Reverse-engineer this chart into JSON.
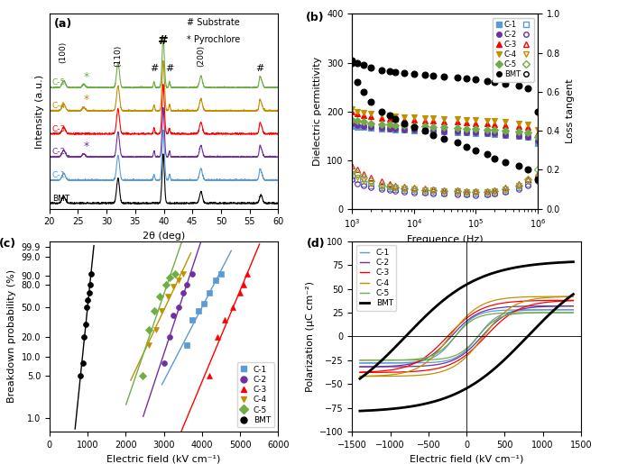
{
  "colors": {
    "C1": "#5b9bd5",
    "C2": "#7030a0",
    "C3": "#ff0000",
    "C4": "#c09000",
    "C5": "#70ad47",
    "BMT": "#000000"
  },
  "panel_b": {
    "freq": [
      1000,
      1200,
      1500,
      2000,
      3000,
      4000,
      5000,
      7000,
      10000,
      15000,
      20000,
      30000,
      50000,
      70000,
      100000,
      150000,
      200000,
      300000,
      500000,
      700000,
      1000000
    ],
    "BMT_perm": [
      305,
      300,
      295,
      290,
      285,
      283,
      281,
      279,
      277,
      275,
      273,
      271,
      269,
      267,
      265,
      263,
      261,
      257,
      253,
      248,
      200
    ],
    "C1_perm": [
      170,
      168,
      167,
      166,
      165,
      164,
      163,
      162,
      161,
      160,
      159,
      158,
      157,
      156,
      155,
      154,
      153,
      151,
      149,
      147,
      135
    ],
    "C2_perm": [
      175,
      172,
      170,
      168,
      166,
      165,
      164,
      163,
      162,
      161,
      160,
      159,
      158,
      157,
      156,
      155,
      154,
      152,
      150,
      148,
      140
    ],
    "C3_perm": [
      200,
      195,
      192,
      190,
      187,
      185,
      184,
      183,
      182,
      181,
      180,
      179,
      178,
      177,
      176,
      175,
      174,
      172,
      170,
      167,
      155
    ],
    "C4_perm": [
      205,
      200,
      198,
      196,
      193,
      191,
      190,
      189,
      188,
      187,
      186,
      185,
      184,
      183,
      182,
      181,
      180,
      178,
      176,
      174,
      162
    ],
    "C5_perm": [
      183,
      180,
      178,
      176,
      174,
      173,
      172,
      171,
      170,
      169,
      168,
      167,
      166,
      165,
      164,
      163,
      162,
      160,
      158,
      156,
      148
    ],
    "BMT_loss": [
      0.75,
      0.65,
      0.6,
      0.55,
      0.5,
      0.48,
      0.46,
      0.44,
      0.42,
      0.4,
      0.38,
      0.36,
      0.34,
      0.32,
      0.3,
      0.28,
      0.26,
      0.24,
      0.22,
      0.2,
      0.15
    ],
    "C1_loss": [
      0.17,
      0.15,
      0.13,
      0.12,
      0.11,
      0.105,
      0.1,
      0.095,
      0.09,
      0.088,
      0.085,
      0.082,
      0.08,
      0.078,
      0.076,
      0.078,
      0.082,
      0.09,
      0.11,
      0.13,
      0.15
    ],
    "C2_loss": [
      0.15,
      0.13,
      0.12,
      0.11,
      0.1,
      0.095,
      0.09,
      0.085,
      0.082,
      0.08,
      0.078,
      0.076,
      0.074,
      0.072,
      0.07,
      0.072,
      0.076,
      0.085,
      0.1,
      0.12,
      0.14
    ],
    "C3_loss": [
      0.22,
      0.2,
      0.18,
      0.16,
      0.14,
      0.13,
      0.12,
      0.115,
      0.11,
      0.105,
      0.1,
      0.098,
      0.095,
      0.093,
      0.09,
      0.093,
      0.098,
      0.11,
      0.13,
      0.15,
      0.18
    ],
    "C4_loss": [
      0.18,
      0.16,
      0.14,
      0.13,
      0.12,
      0.115,
      0.11,
      0.105,
      0.1,
      0.098,
      0.095,
      0.093,
      0.09,
      0.088,
      0.085,
      0.088,
      0.093,
      0.1,
      0.12,
      0.14,
      0.16
    ],
    "C5_loss": [
      0.2,
      0.18,
      0.16,
      0.14,
      0.12,
      0.115,
      0.11,
      0.105,
      0.1,
      0.098,
      0.095,
      0.093,
      0.09,
      0.088,
      0.085,
      0.088,
      0.093,
      0.1,
      0.12,
      0.15,
      0.2
    ]
  },
  "panel_c": {
    "xlabel": "Electric field (kV cm⁻¹)",
    "ylabel": "Breakdown probability (%)",
    "BMT_x": [
      820,
      870,
      910,
      950,
      980,
      1010,
      1040,
      1070,
      1100
    ],
    "BMT_p": [
      5.0,
      8.0,
      20.0,
      30.0,
      50.0,
      60.0,
      70.0,
      80.0,
      91.0
    ],
    "C1_x": [
      3600,
      3750,
      3900,
      4050,
      4200,
      4350,
      4500
    ],
    "C1_p": [
      15.0,
      35.0,
      45.0,
      55.0,
      70.0,
      85.0,
      91.0
    ],
    "C2_x": [
      3000,
      3150,
      3250,
      3400,
      3500,
      3600,
      3750
    ],
    "C2_p": [
      8.0,
      20.0,
      40.0,
      50.0,
      70.0,
      80.0,
      91.0
    ],
    "C3_x": [
      4200,
      4400,
      4600,
      4800,
      5000,
      5100,
      5200
    ],
    "C3_p": [
      5.0,
      20.0,
      35.0,
      50.0,
      70.0,
      80.0,
      91.0
    ],
    "C4_x": [
      2600,
      2800,
      2950,
      3100,
      3250,
      3400,
      3500
    ],
    "C4_p": [
      15.0,
      25.0,
      45.0,
      65.0,
      78.0,
      85.0,
      91.0
    ],
    "C5_x": [
      2450,
      2600,
      2750,
      2900,
      3050,
      3150,
      3300
    ],
    "C5_p": [
      5.0,
      25.0,
      45.0,
      65.0,
      80.0,
      88.0,
      91.0
    ]
  },
  "panel_d": {
    "xlabel": "Electric field (kV cm⁻¹)",
    "ylabel": "Polarization (μC cm⁻²)",
    "xlim": [
      -1500,
      1500
    ],
    "ylim": [
      -100,
      100
    ]
  }
}
